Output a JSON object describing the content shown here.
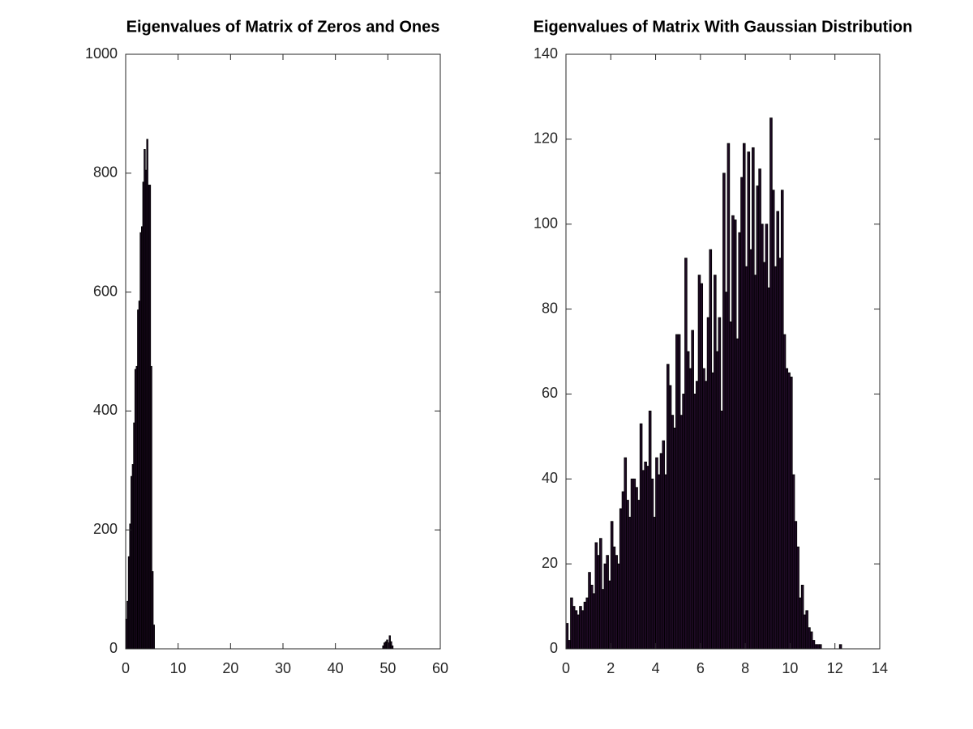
{
  "chart_data": [
    {
      "type": "bar",
      "title": "Eigenvalues of Matrix of Zeros and Ones",
      "color": "#1e0a24",
      "x": [
        0.125,
        0.375,
        0.625,
        0.875,
        1.125,
        1.375,
        1.625,
        1.875,
        2.125,
        2.375,
        2.625,
        2.875,
        3.125,
        3.375,
        3.625,
        3.875,
        4.125,
        4.375,
        4.625,
        4.875,
        5.125,
        5.375,
        49.125,
        49.375,
        49.625,
        49.875,
        50.125,
        50.375,
        50.625,
        50.875
      ],
      "values": [
        50,
        80,
        155,
        210,
        290,
        310,
        380,
        470,
        475,
        570,
        585,
        700,
        710,
        785,
        840,
        805,
        857,
        780,
        780,
        475,
        130,
        40,
        5,
        10,
        12,
        15,
        10,
        22,
        12,
        5
      ],
      "xlim": [
        0,
        60
      ],
      "xticks": [
        0,
        10,
        20,
        30,
        40,
        50,
        60
      ],
      "ylim": [
        0,
        1000
      ],
      "yticks": [
        0,
        200,
        400,
        600,
        800,
        1000
      ]
    },
    {
      "type": "bar",
      "title": "Eigenvalues of Matrix With Gaussian Distribution",
      "color": "#1e0a24",
      "x": [
        0.05,
        0.15,
        0.25,
        0.35,
        0.45,
        0.55,
        0.65,
        0.75,
        0.85,
        0.95,
        1.05,
        1.15,
        1.25,
        1.35,
        1.45,
        1.55,
        1.65,
        1.75,
        1.85,
        1.95,
        2.05,
        2.15,
        2.25,
        2.35,
        2.45,
        2.55,
        2.65,
        2.75,
        2.85,
        2.95,
        3.05,
        3.15,
        3.25,
        3.35,
        3.45,
        3.55,
        3.65,
        3.75,
        3.85,
        3.95,
        4.05,
        4.15,
        4.25,
        4.35,
        4.45,
        4.55,
        4.65,
        4.75,
        4.85,
        4.95,
        5.05,
        5.15,
        5.25,
        5.35,
        5.45,
        5.55,
        5.65,
        5.75,
        5.85,
        5.95,
        6.05,
        6.15,
        6.25,
        6.35,
        6.45,
        6.55,
        6.65,
        6.75,
        6.85,
        6.95,
        7.05,
        7.15,
        7.25,
        7.35,
        7.45,
        7.55,
        7.65,
        7.75,
        7.85,
        7.95,
        8.05,
        8.15,
        8.25,
        8.35,
        8.45,
        8.55,
        8.65,
        8.75,
        8.85,
        8.95,
        9.05,
        9.15,
        9.25,
        9.35,
        9.45,
        9.55,
        9.65,
        9.75,
        9.85,
        9.95,
        10.05,
        10.15,
        10.25,
        10.35,
        10.45,
        10.55,
        10.65,
        10.75,
        10.85,
        10.95,
        11.05,
        11.15,
        11.25,
        11.35,
        12.25
      ],
      "values": [
        6,
        2,
        12,
        10,
        9,
        8,
        10,
        9,
        11,
        12,
        18,
        15,
        13,
        25,
        22,
        26,
        14,
        20,
        22,
        16,
        30,
        24,
        22,
        20,
        33,
        37,
        45,
        35,
        31,
        40,
        40,
        38,
        35,
        53,
        42,
        44,
        43,
        56,
        40,
        31,
        45,
        41,
        46,
        49,
        41,
        67,
        62,
        55,
        52,
        74,
        74,
        55,
        60,
        92,
        70,
        66,
        75,
        60,
        63,
        88,
        86,
        66,
        63,
        78,
        94,
        65,
        88,
        70,
        78,
        56,
        112,
        84,
        119,
        77,
        102,
        101,
        73,
        98,
        111,
        119,
        90,
        117,
        94,
        118,
        88,
        109,
        113,
        100,
        91,
        100,
        85,
        125,
        108,
        90,
        103,
        92,
        108,
        74,
        66,
        65,
        64,
        41,
        30,
        24,
        12,
        15,
        8,
        9,
        5,
        4,
        2,
        1,
        1,
        1,
        1
      ],
      "xlim": [
        0,
        14
      ],
      "xticks": [
        0,
        2,
        4,
        6,
        8,
        10,
        12,
        14
      ],
      "ylim": [
        0,
        140
      ],
      "yticks": [
        0,
        20,
        40,
        60,
        80,
        100,
        120,
        140
      ]
    }
  ]
}
